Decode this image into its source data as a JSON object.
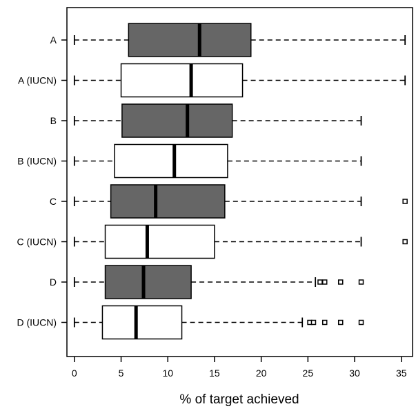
{
  "chart_data": {
    "type": "boxplot",
    "orientation": "horizontal",
    "title": "",
    "xlabel": "% of target achieved",
    "ylabel": "",
    "xlim": [
      -0.8,
      36.2
    ],
    "xticks": [
      0,
      5,
      10,
      15,
      20,
      25,
      30,
      35
    ],
    "xtick_labels": [
      "0",
      "5",
      "10",
      "15",
      "20",
      "25",
      "30",
      "35"
    ],
    "grid": false,
    "legend": "none",
    "colors": {
      "shaded": "#666666",
      "open": "#ffffff",
      "stroke": "#000000"
    },
    "boxes": [
      {
        "label": "A",
        "fill": "shaded",
        "whisker_low": 0,
        "q1": 5.8,
        "median": 13.4,
        "q3": 18.9,
        "whisker_high": 35.4,
        "outliers": []
      },
      {
        "label": "A (IUCN)",
        "fill": "open",
        "whisker_low": 0,
        "q1": 5.0,
        "median": 12.5,
        "q3": 18.0,
        "whisker_high": 35.4,
        "outliers": []
      },
      {
        "label": "B",
        "fill": "shaded",
        "whisker_low": 0,
        "q1": 5.1,
        "median": 12.1,
        "q3": 16.9,
        "whisker_high": 30.7,
        "outliers": []
      },
      {
        "label": "B (IUCN)",
        "fill": "open",
        "whisker_low": 0,
        "q1": 4.3,
        "median": 10.7,
        "q3": 16.4,
        "whisker_high": 30.7,
        "outliers": []
      },
      {
        "label": "C",
        "fill": "shaded",
        "whisker_low": 0,
        "q1": 3.9,
        "median": 8.7,
        "q3": 16.1,
        "whisker_high": 30.7,
        "outliers": [
          35.4
        ]
      },
      {
        "label": "C (IUCN)",
        "fill": "open",
        "whisker_low": 0,
        "q1": 3.3,
        "median": 7.8,
        "q3": 15.0,
        "whisker_high": 30.7,
        "outliers": [
          35.4
        ]
      },
      {
        "label": "D",
        "fill": "shaded",
        "whisker_low": 0,
        "q1": 3.3,
        "median": 7.4,
        "q3": 12.5,
        "whisker_high": 25.8,
        "outliers": [
          26.3,
          26.8,
          28.5,
          30.7
        ]
      },
      {
        "label": "D (IUCN)",
        "fill": "open",
        "whisker_low": 0,
        "q1": 3.0,
        "median": 6.6,
        "q3": 11.5,
        "whisker_high": 24.4,
        "outliers": [
          25.2,
          25.6,
          26.8,
          28.5,
          30.7
        ]
      }
    ]
  }
}
